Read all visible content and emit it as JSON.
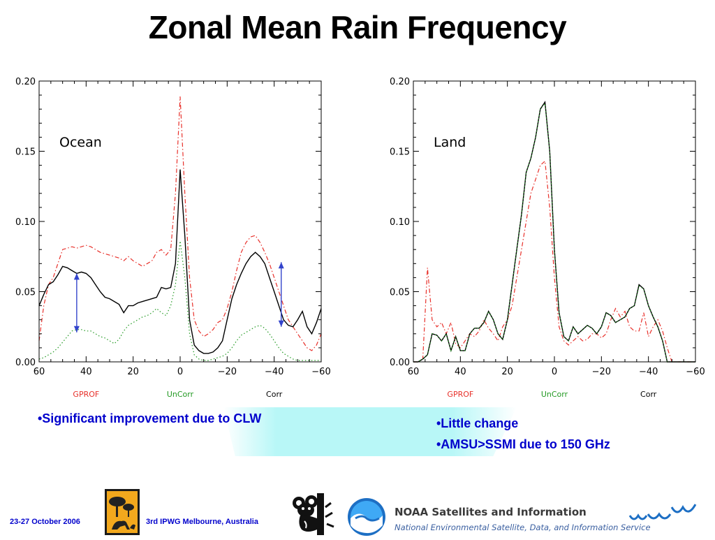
{
  "slide": {
    "title": "Zonal Mean Rain Frequency",
    "bullets_left": [
      "•Significant improvement due to CLW"
    ],
    "bullets_right": [
      "•Little change",
      "•AMSU>SSMI due to 150 GHz"
    ],
    "footer": {
      "date": "23-27 October 2006",
      "event": "3rd IPWG  Melbourne, Australia",
      "noaa_header": "NOAA Satellites and Information",
      "noaa_sub": "National Environmental Satellite, Data, and Information Service"
    }
  },
  "colors": {
    "gprof": "#e8302a",
    "uncorr": "#229922",
    "corr": "#000000",
    "arrow": "#3344cc",
    "bullet_text": "#0000cc",
    "band": "#b8f7f7"
  },
  "chart_data": [
    {
      "type": "line",
      "annotation": "Ocean",
      "xlim": [
        60,
        -60
      ],
      "ylim": [
        0,
        0.2
      ],
      "xticks": [
        60,
        40,
        20,
        0,
        -20,
        -40,
        -60
      ],
      "xtick_labels": [
        "60",
        "40",
        "20",
        "0",
        "−20",
        "−40",
        "−60"
      ],
      "yticks": [
        0,
        0.05,
        0.1,
        0.15,
        0.2
      ],
      "ytick_labels": [
        "0.00",
        "0.05",
        "0.10",
        "0.15",
        "0.20"
      ],
      "legend": [
        "GPROF",
        "UnCorr",
        "Corr"
      ],
      "x": [
        60,
        58,
        56,
        54,
        52,
        50,
        48,
        46,
        44,
        42,
        40,
        38,
        36,
        34,
        32,
        30,
        28,
        26,
        24,
        22,
        20,
        18,
        16,
        14,
        12,
        10,
        8,
        6,
        4,
        2,
        0,
        -2,
        -4,
        -6,
        -8,
        -10,
        -12,
        -14,
        -16,
        -18,
        -20,
        -22,
        -24,
        -26,
        -28,
        -30,
        -32,
        -34,
        -36,
        -38,
        -40,
        -42,
        -44,
        -46,
        -48,
        -50,
        -52,
        -54,
        -56,
        -58,
        -60
      ],
      "series": [
        {
          "name": "GPROF",
          "style": "dash-dot",
          "values": [
            0.015,
            0.04,
            0.055,
            0.06,
            0.07,
            0.08,
            0.081,
            0.082,
            0.081,
            0.082,
            0.083,
            0.082,
            0.08,
            0.078,
            0.077,
            0.076,
            0.075,
            0.074,
            0.072,
            0.075,
            0.072,
            0.07,
            0.068,
            0.07,
            0.072,
            0.078,
            0.08,
            0.076,
            0.08,
            0.12,
            0.189,
            0.12,
            0.06,
            0.03,
            0.022,
            0.018,
            0.02,
            0.023,
            0.028,
            0.03,
            0.038,
            0.05,
            0.065,
            0.078,
            0.085,
            0.089,
            0.09,
            0.085,
            0.078,
            0.07,
            0.06,
            0.05,
            0.04,
            0.03,
            0.025,
            0.02,
            0.015,
            0.01,
            0.008,
            0.012,
            0.02
          ]
        },
        {
          "name": "Corr",
          "style": "solid",
          "values": [
            0.04,
            0.048,
            0.055,
            0.057,
            0.062,
            0.068,
            0.067,
            0.065,
            0.063,
            0.064,
            0.063,
            0.06,
            0.055,
            0.05,
            0.046,
            0.045,
            0.043,
            0.041,
            0.035,
            0.04,
            0.04,
            0.042,
            0.043,
            0.044,
            0.045,
            0.046,
            0.053,
            0.052,
            0.053,
            0.07,
            0.137,
            0.09,
            0.03,
            0.012,
            0.008,
            0.006,
            0.006,
            0.007,
            0.01,
            0.015,
            0.03,
            0.045,
            0.055,
            0.063,
            0.07,
            0.075,
            0.078,
            0.075,
            0.07,
            0.06,
            0.05,
            0.04,
            0.03,
            0.026,
            0.025,
            0.03,
            0.036,
            0.025,
            0.02,
            0.028,
            0.038
          ]
        },
        {
          "name": "UnCorr",
          "style": "dotted",
          "values": [
            0.002,
            0.003,
            0.005,
            0.007,
            0.01,
            0.014,
            0.018,
            0.022,
            0.023,
            0.023,
            0.022,
            0.022,
            0.02,
            0.018,
            0.017,
            0.015,
            0.013,
            0.016,
            0.022,
            0.026,
            0.028,
            0.03,
            0.032,
            0.033,
            0.035,
            0.038,
            0.035,
            0.033,
            0.04,
            0.055,
            0.086,
            0.06,
            0.02,
            0.005,
            0.002,
            0.001,
            0.001,
            0.002,
            0.003,
            0.004,
            0.006,
            0.01,
            0.015,
            0.019,
            0.021,
            0.023,
            0.025,
            0.026,
            0.024,
            0.02,
            0.015,
            0.01,
            0.006,
            0.004,
            0.002,
            0.001,
            0.001,
            0.001,
            0.001,
            0.001,
            0.001
          ]
        }
      ],
      "arrows": [
        {
          "x": 44,
          "y_top": 0.063,
          "y_bottom": 0.021
        },
        {
          "x": -43,
          "y_top": 0.071,
          "y_bottom": 0.025
        }
      ]
    },
    {
      "type": "line",
      "annotation": "Land",
      "xlim": [
        60,
        -60
      ],
      "ylim": [
        0,
        0.2
      ],
      "xticks": [
        60,
        40,
        20,
        0,
        -20,
        -40,
        -60
      ],
      "xtick_labels": [
        "60",
        "40",
        "20",
        "0",
        "−20",
        "−40",
        "−60"
      ],
      "yticks": [
        0,
        0.05,
        0.1,
        0.15,
        0.2
      ],
      "ytick_labels": [
        "0.00",
        "0.05",
        "0.10",
        "0.15",
        "0.20"
      ],
      "legend": [
        "GPROF",
        "UnCorr",
        "Corr"
      ],
      "x": [
        60,
        58,
        56,
        54,
        52,
        50,
        48,
        46,
        44,
        42,
        40,
        38,
        36,
        34,
        32,
        30,
        28,
        26,
        24,
        22,
        20,
        18,
        16,
        14,
        12,
        10,
        8,
        6,
        4,
        2,
        0,
        -2,
        -4,
        -6,
        -8,
        -10,
        -12,
        -14,
        -16,
        -18,
        -20,
        -22,
        -24,
        -26,
        -28,
        -30,
        -32,
        -34,
        -36,
        -38,
        -40,
        -42,
        -44,
        -46,
        -48,
        -50,
        -52,
        -54,
        -56,
        -58,
        -60
      ],
      "series": [
        {
          "name": "GPROF",
          "style": "dash-dot",
          "values": [
            0.0,
            0.0,
            0.002,
            0.067,
            0.03,
            0.025,
            0.028,
            0.02,
            0.028,
            0.013,
            0.01,
            0.015,
            0.02,
            0.018,
            0.022,
            0.03,
            0.024,
            0.02,
            0.015,
            0.025,
            0.03,
            0.04,
            0.06,
            0.08,
            0.1,
            0.12,
            0.13,
            0.14,
            0.143,
            0.11,
            0.06,
            0.025,
            0.015,
            0.012,
            0.015,
            0.018,
            0.015,
            0.016,
            0.02,
            0.02,
            0.017,
            0.02,
            0.03,
            0.038,
            0.032,
            0.036,
            0.025,
            0.022,
            0.022,
            0.035,
            0.018,
            0.025,
            0.03,
            0.022,
            0.01,
            0.0,
            0.0,
            0.0,
            0.0,
            0.0,
            0.0
          ]
        },
        {
          "name": "Corr",
          "style": "solid",
          "values": [
            0.0,
            0.0,
            0.002,
            0.005,
            0.02,
            0.019,
            0.015,
            0.02,
            0.008,
            0.018,
            0.008,
            0.008,
            0.02,
            0.024,
            0.024,
            0.028,
            0.036,
            0.03,
            0.02,
            0.016,
            0.03,
            0.055,
            0.08,
            0.105,
            0.135,
            0.145,
            0.16,
            0.18,
            0.185,
            0.15,
            0.08,
            0.035,
            0.018,
            0.015,
            0.025,
            0.02,
            0.023,
            0.026,
            0.024,
            0.02,
            0.025,
            0.035,
            0.033,
            0.028,
            0.03,
            0.032,
            0.038,
            0.04,
            0.055,
            0.052,
            0.04,
            0.032,
            0.025,
            0.015,
            0.0,
            0.0,
            0.0,
            0.0,
            0.0,
            0.0,
            0.0
          ]
        },
        {
          "name": "UnCorr",
          "style": "dotted",
          "values": [
            0.0,
            0.0,
            0.002,
            0.005,
            0.02,
            0.019,
            0.015,
            0.02,
            0.008,
            0.018,
            0.008,
            0.008,
            0.02,
            0.024,
            0.024,
            0.028,
            0.036,
            0.03,
            0.02,
            0.016,
            0.03,
            0.055,
            0.08,
            0.105,
            0.135,
            0.145,
            0.16,
            0.18,
            0.184,
            0.15,
            0.08,
            0.035,
            0.018,
            0.015,
            0.025,
            0.02,
            0.023,
            0.026,
            0.024,
            0.02,
            0.025,
            0.035,
            0.033,
            0.028,
            0.03,
            0.032,
            0.038,
            0.04,
            0.054,
            0.052,
            0.04,
            0.032,
            0.025,
            0.015,
            0.0,
            0.0,
            0.0,
            0.0,
            0.0,
            0.0,
            0.0
          ]
        }
      ],
      "arrows": []
    }
  ]
}
